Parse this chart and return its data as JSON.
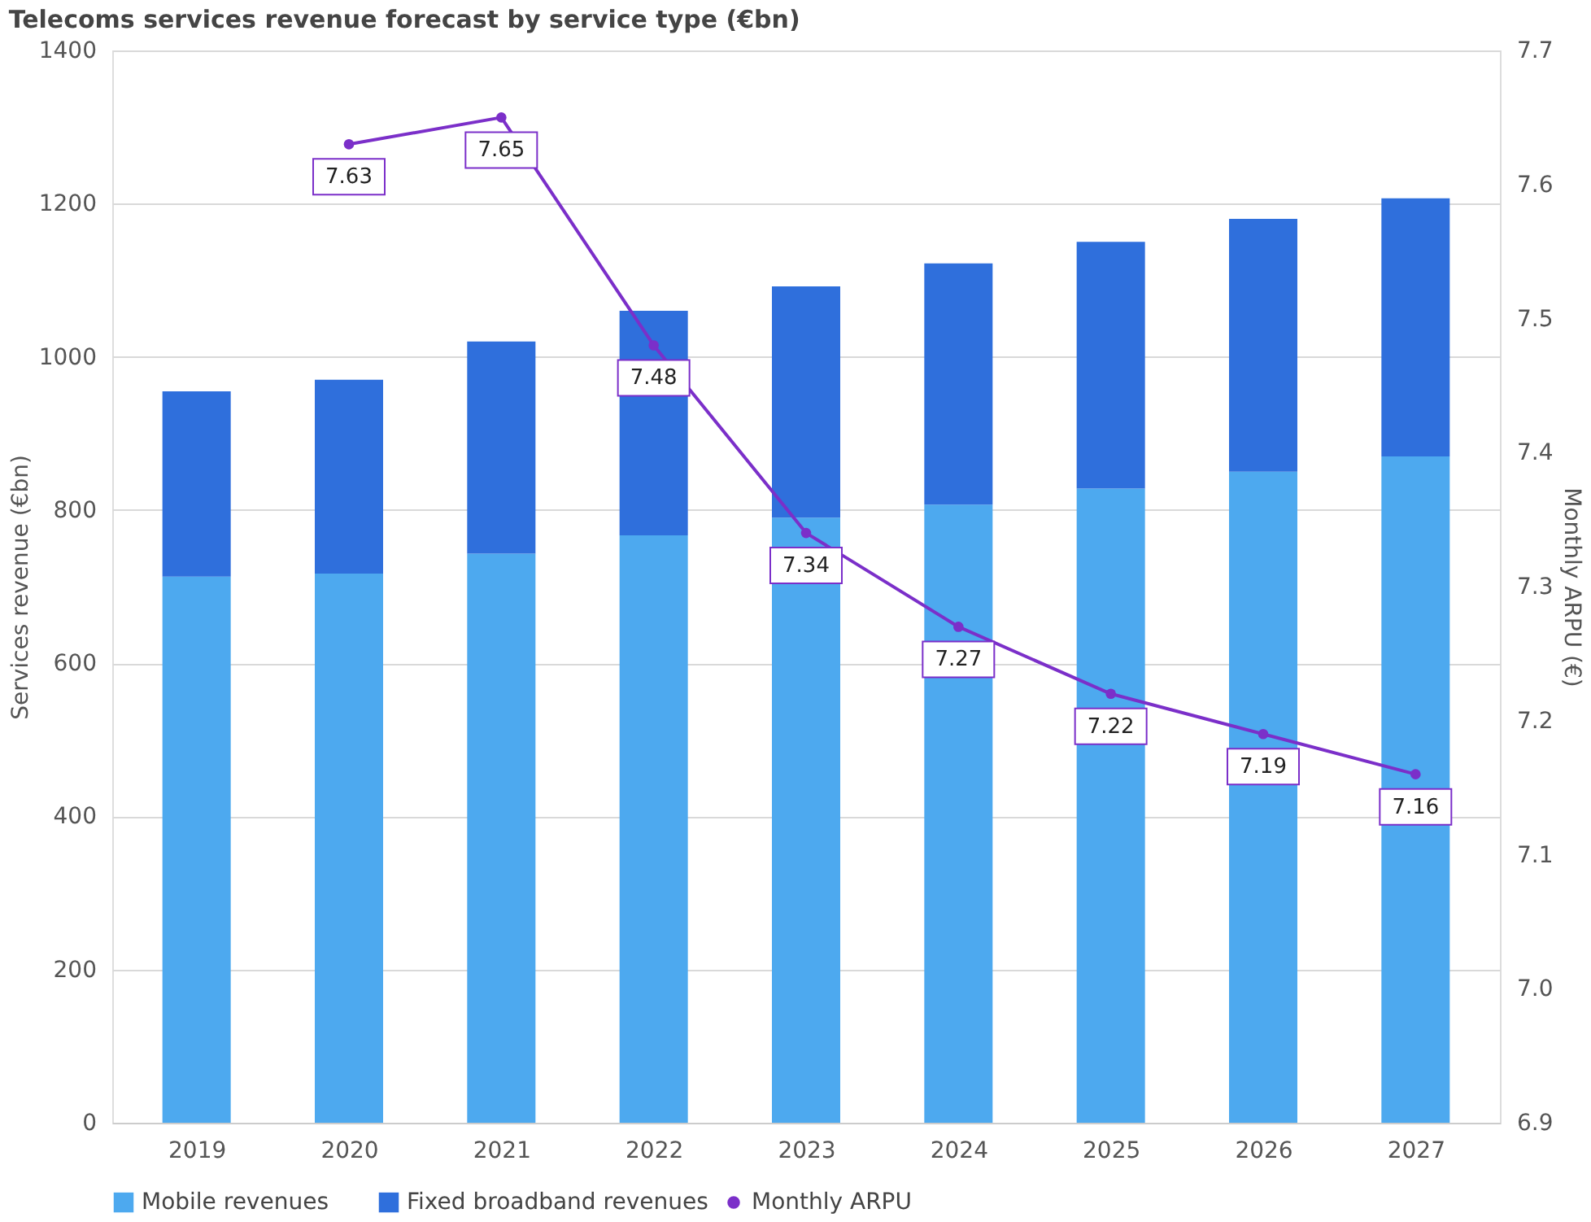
{
  "chart_data": {
    "type": "bar",
    "title": "Telecoms services revenue forecast by service type (€bn)",
    "ylabel": "Services revenue (€bn)",
    "y2label": "Monthly ARPU (€)",
    "categories": [
      "2019",
      "2020",
      "2021",
      "2022",
      "2023",
      "2024",
      "2025",
      "2026",
      "2027"
    ],
    "stacked": true,
    "series": [
      {
        "name": "Mobile revenues",
        "color": "#4da9ef",
        "values": [
          713,
          717,
          743,
          767,
          790,
          807,
          828,
          850,
          870
        ]
      },
      {
        "name": "Fixed broadband revenues",
        "color": "#2f6fdc",
        "values": [
          242,
          253,
          277,
          293,
          302,
          315,
          322,
          330,
          337
        ]
      },
      {
        "name": "Monthly ARPU",
        "type": "line",
        "axis": "y2",
        "color": "#7b2fc9",
        "marker": "circle",
        "values": [
          null,
          7.63,
          7.65,
          7.48,
          7.34,
          7.27,
          7.22,
          7.19,
          7.16
        ],
        "value_labels": [
          null,
          "7.63",
          "7.65",
          "7.48",
          "7.34",
          "7.27",
          "7.22",
          "7.19",
          "7.16"
        ]
      }
    ],
    "ylim": [
      0,
      1400
    ],
    "yticks": [
      0,
      200,
      400,
      600,
      800,
      1000,
      1200,
      1400
    ],
    "y2lim": [
      6.9,
      7.7
    ],
    "y2ticks": [
      6.9,
      {
        "value": 7.0,
        "label": "7.0"
      },
      7.1,
      7.2,
      7.3,
      7.4,
      7.5,
      7.6,
      7.7
    ],
    "grid": "y",
    "legend": "bottom"
  }
}
